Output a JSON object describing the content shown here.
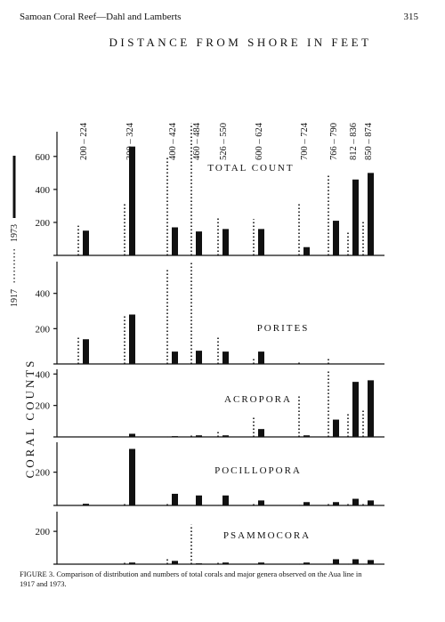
{
  "header": {
    "running_title": "Samoan Coral Reef—Dahl and Lamberts",
    "page_number": "315"
  },
  "figure": {
    "title": "DISTANCE FROM SHORE IN FEET",
    "y_label": "CORAL COUNTS",
    "categories": [
      "200 – 224",
      "300 – 324",
      "400 – 424",
      "460 – 484",
      "526 – 550",
      "600 – 624",
      "700 – 724",
      "766 – 790",
      "812 – 836",
      "850 – 874"
    ],
    "caption": "FIGURE 3. Comparison of distribution and numbers of total corals and major genera observed on the Aua line in 1917 and 1973."
  },
  "chart_data": [
    {
      "type": "bar",
      "title": "TOTAL COUNT",
      "ylim": [
        0,
        750
      ],
      "yticks": [
        200,
        400,
        600
      ],
      "series": [
        {
          "name": "1917",
          "style": "dotted",
          "color": "#111111",
          "values": [
            180,
            320,
            600,
            800,
            230,
            220,
            310,
            490,
            150,
            210
          ]
        },
        {
          "name": "1973",
          "style": "solid",
          "color": "#111111",
          "values": [
            150,
            660,
            170,
            145,
            160,
            160,
            50,
            210,
            460,
            500
          ]
        }
      ]
    },
    {
      "type": "bar",
      "title": "PORITES",
      "ylim": [
        0,
        580
      ],
      "yticks": [
        200,
        400
      ],
      "series": [
        {
          "name": "1917",
          "style": "dotted",
          "color": "#111111",
          "values": [
            160,
            270,
            540,
            580,
            150,
            40,
            10,
            40,
            null,
            null
          ]
        },
        {
          "name": "1973",
          "style": "solid",
          "color": "#111111",
          "values": [
            140,
            280,
            70,
            75,
            70,
            70,
            null,
            null,
            null,
            null
          ]
        }
      ]
    },
    {
      "type": "bar",
      "title": "ACROPORA",
      "ylim": [
        0,
        430
      ],
      "yticks": [
        200,
        400
      ],
      "series": [
        {
          "name": "1917",
          "style": "dotted",
          "color": "#111111",
          "values": [
            0,
            0,
            0,
            20,
            40,
            130,
            260,
            420,
            150,
            180
          ]
        },
        {
          "name": "1973",
          "style": "solid",
          "color": "#111111",
          "values": [
            0,
            20,
            5,
            10,
            10,
            50,
            10,
            110,
            350,
            360
          ]
        }
      ]
    },
    {
      "type": "bar",
      "title": "POCILLOPORA",
      "ylim": [
        0,
        380
      ],
      "yticks": [
        200
      ],
      "series": [
        {
          "name": "1917",
          "style": "dotted",
          "color": "#111111",
          "values": [
            0,
            10,
            20,
            0,
            0,
            20,
            0,
            10,
            20,
            20
          ]
        },
        {
          "name": "1973",
          "style": "solid",
          "color": "#111111",
          "values": [
            10,
            340,
            70,
            60,
            60,
            30,
            20,
            20,
            40,
            30
          ]
        }
      ]
    },
    {
      "type": "bar",
      "title": "PSAMMOCORA",
      "ylim": [
        0,
        320
      ],
      "yticks": [
        200
      ],
      "series": [
        {
          "name": "1917",
          "style": "dotted",
          "color": "#111111",
          "values": [
            0,
            20,
            40,
            240,
            10,
            0,
            0,
            0,
            0,
            0
          ]
        },
        {
          "name": "1973",
          "style": "solid",
          "color": "#111111",
          "values": [
            0,
            10,
            20,
            5,
            10,
            10,
            10,
            30,
            30,
            25
          ]
        }
      ]
    }
  ]
}
